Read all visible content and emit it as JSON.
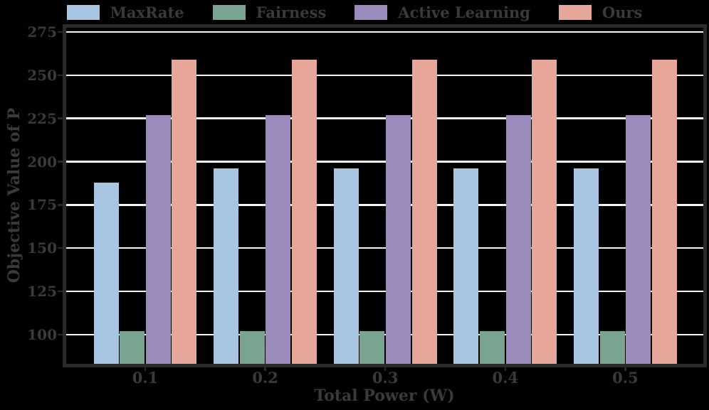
{
  "colors": {
    "background": "#000000",
    "text": "#3a3a3a",
    "spine": "#2a2a2a",
    "gridline": "#f4f4f4"
  },
  "chart_data": {
    "type": "bar",
    "title": "",
    "xlabel": "Total Power (W)",
    "ylabel": "Objective Value of P",
    "categories": [
      "0.1",
      "0.2",
      "0.3",
      "0.4",
      "0.5"
    ],
    "series": [
      {
        "name": "MaxRate",
        "color": "#a8c5e2",
        "values": [
          188,
          196,
          196,
          196,
          196
        ]
      },
      {
        "name": "Fairness",
        "color": "#78a491",
        "values": [
          102,
          102,
          102,
          102,
          102
        ]
      },
      {
        "name": "Active Learning",
        "color": "#9b8abc",
        "values": [
          227,
          227,
          227,
          227,
          227
        ]
      },
      {
        "name": "Ours",
        "color": "#e7a69a",
        "values": [
          259,
          259,
          259,
          259,
          259
        ]
      }
    ],
    "ylim": [
      83.3,
      277.5
    ],
    "yticks": [
      100,
      125,
      150,
      175,
      200,
      225,
      250,
      275
    ],
    "grid": "horizontal",
    "gridlines_behind_bars": true,
    "legend_position": "top-center"
  }
}
